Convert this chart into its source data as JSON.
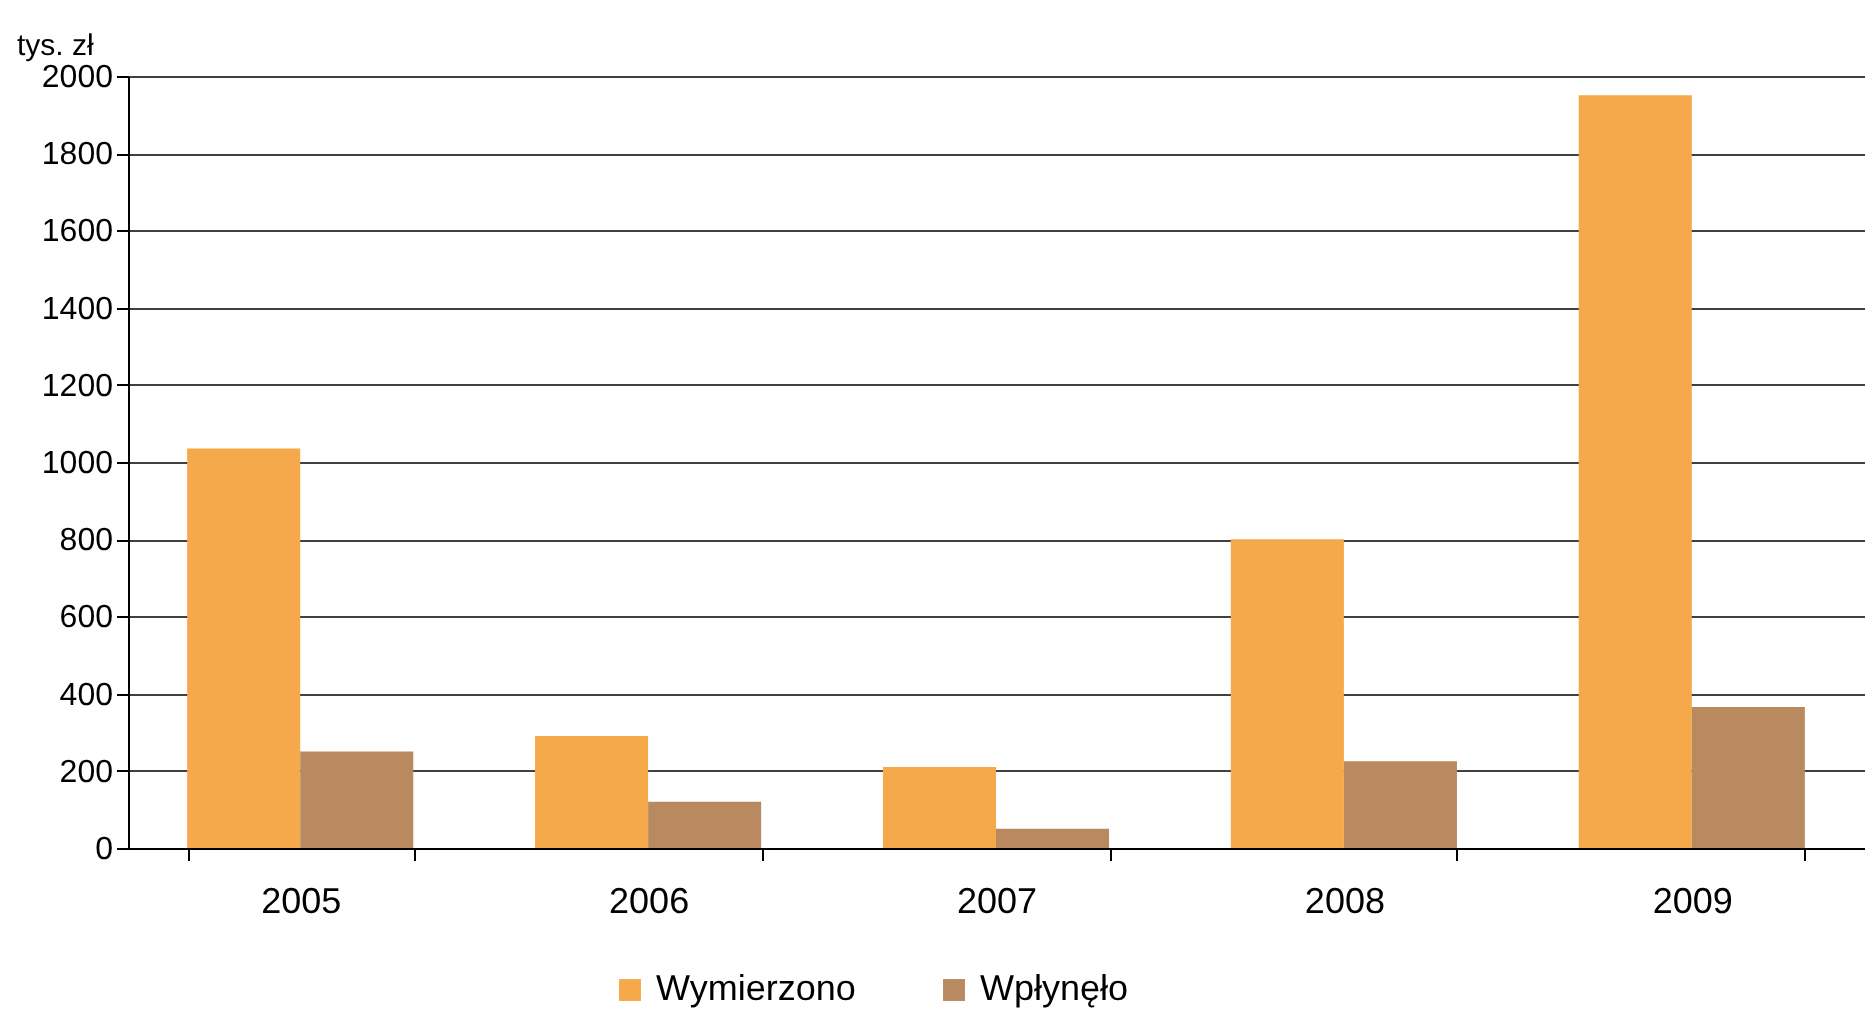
{
  "chart_data": {
    "type": "bar",
    "ylabel": "tys. zł",
    "categories": [
      "2005",
      "2006",
      "2007",
      "2008",
      "2009"
    ],
    "series": [
      {
        "name": "Wymierzono",
        "color": "#f5a94a",
        "values": [
          1035,
          290,
          210,
          800,
          1950
        ]
      },
      {
        "name": "Wpłynęło",
        "color": "#b98a60",
        "values": [
          250,
          120,
          50,
          225,
          365
        ]
      }
    ],
    "ylim": [
      0,
      2000
    ],
    "yticks": [
      0,
      200,
      400,
      600,
      800,
      1000,
      1200,
      1400,
      1600,
      1800,
      2000
    ],
    "grid": "y",
    "legend": "bottom"
  }
}
